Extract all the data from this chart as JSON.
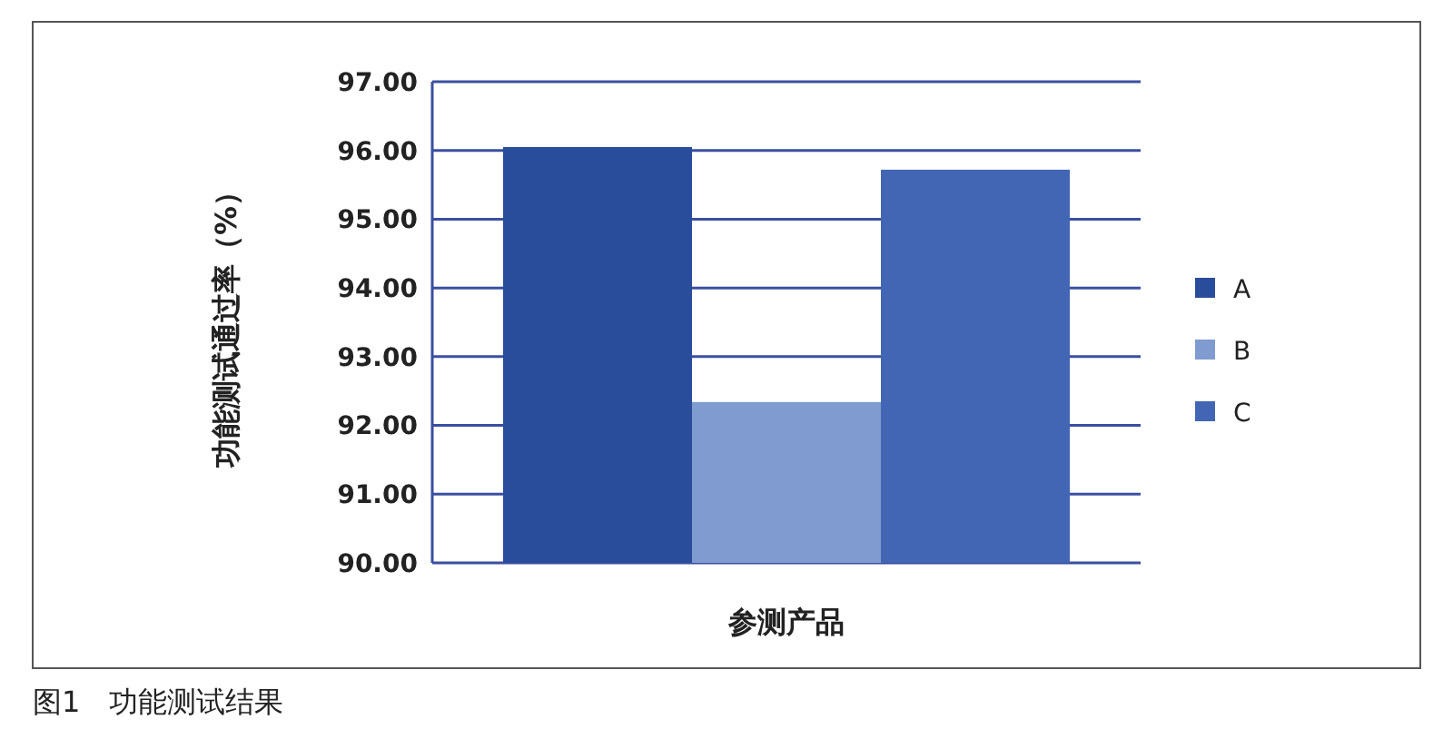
{
  "chart_data": {
    "type": "bar",
    "ylabel": "功能测试通过率（%）",
    "xlabel": "参测产品",
    "categories": [
      null
    ],
    "series": [
      {
        "name": "A",
        "color": "#2a4d9b",
        "values": [
          96.05
        ]
      },
      {
        "name": "B",
        "color": "#7f9bcf",
        "values": [
          92.34
        ]
      },
      {
        "name": "C",
        "color": "#4266b3",
        "values": [
          95.72
        ]
      }
    ],
    "ylim": [
      90,
      97
    ],
    "yticks": [
      {
        "value": 90,
        "label": "90.00"
      },
      {
        "value": 91,
        "label": "91.00"
      },
      {
        "value": 92,
        "label": "92.00"
      },
      {
        "value": 93,
        "label": "93.00"
      },
      {
        "value": 94,
        "label": "94.00"
      },
      {
        "value": 95,
        "label": "95.00"
      },
      {
        "value": 96,
        "label": "96.00"
      },
      {
        "value": 97,
        "label": "97.00"
      }
    ],
    "grid": "y",
    "legend": "right",
    "annotations": [
      "图1　功能测试结果"
    ]
  }
}
